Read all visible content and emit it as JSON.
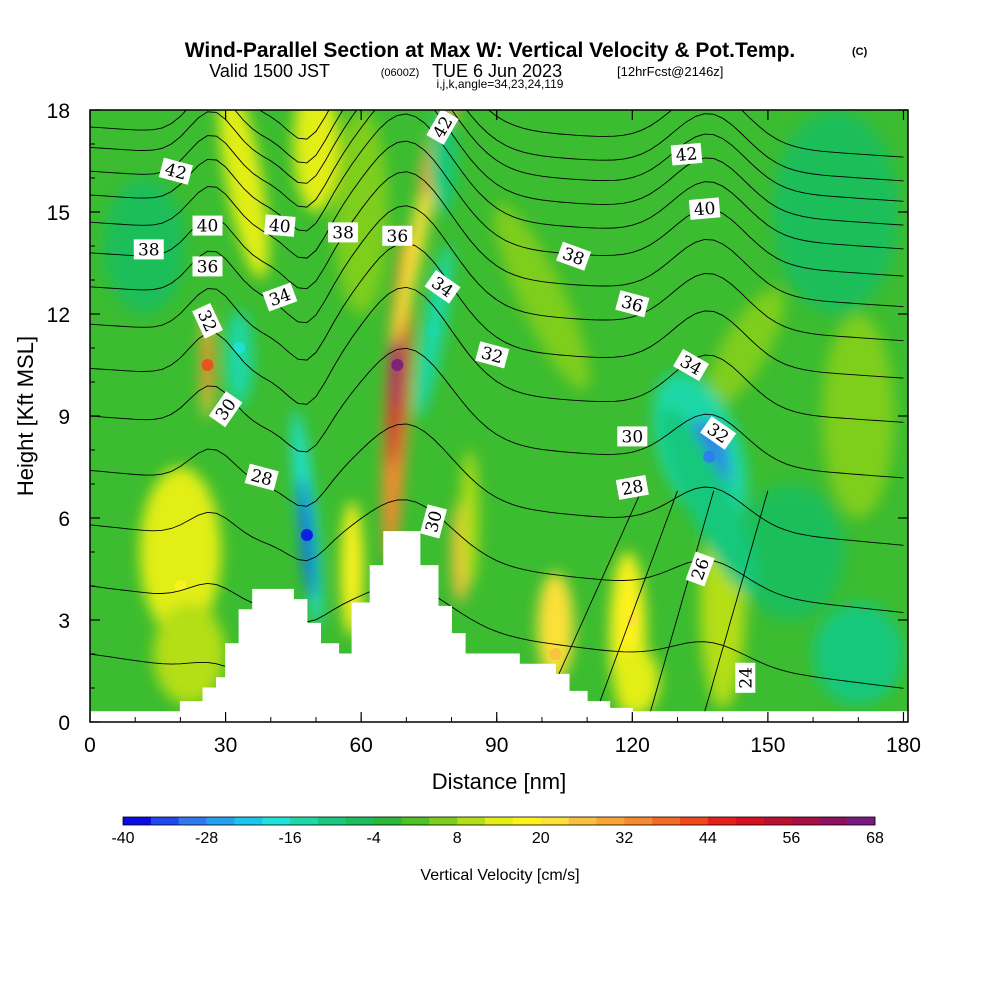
{
  "header": {
    "title": "Wind-Parallel Section at Max W: Vertical Velocity & Pot.Temp.",
    "copyright": "(C)",
    "valid_prefix": "Valid 1500 JST",
    "valid_utc": "(0600Z)",
    "valid_date": "TUE 6 Jun 2023",
    "forecast_info": "[12hrFcst@2146z]",
    "section_params": "i,j,k,angle=34,23,24,119"
  },
  "chart_data": {
    "type": "heatmap",
    "title": "Wind-Parallel Section at Max W: Vertical Velocity & Pot.Temp.",
    "xlabel": "Distance [nm]",
    "ylabel": "Height [Kft MSL]",
    "xlim": [
      0,
      181
    ],
    "ylim": [
      0,
      18
    ],
    "x_ticks": [
      0,
      30,
      60,
      90,
      120,
      150,
      180
    ],
    "y_ticks": [
      0,
      3,
      6,
      9,
      12,
      15,
      18
    ],
    "colorbar": {
      "label": "Vertical Velocity [cm/s]",
      "tick_values": [
        -40,
        -28,
        -16,
        -4,
        8,
        20,
        32,
        44,
        56,
        68
      ],
      "levels": [
        -40,
        -36,
        -32,
        -28,
        -24,
        -20,
        -16,
        -12,
        -8,
        -4,
        0,
        4,
        8,
        12,
        16,
        20,
        24,
        28,
        32,
        36,
        40,
        44,
        48,
        52,
        56,
        60,
        64,
        68
      ],
      "colors": [
        "#0a0ae6",
        "#1f48f0",
        "#2f78f2",
        "#24a0f0",
        "#18c6ee",
        "#1ee2dc",
        "#1cd8a6",
        "#18c87c",
        "#1bbe5a",
        "#2ab83a",
        "#4ec222",
        "#7ece1a",
        "#b4de14",
        "#e2ee14",
        "#fdf21e",
        "#fde038",
        "#f8c03e",
        "#f8a436",
        "#f68a2e",
        "#f46a24",
        "#f0481c",
        "#e8201c",
        "#d6101e",
        "#bc0e30",
        "#a60e44",
        "#8e1060",
        "#781a80"
      ]
    },
    "vertical_velocity_field": [
      {
        "x": 26,
        "y": 10.5,
        "w": 40,
        "desc": "narrow updraft"
      },
      {
        "x": 33,
        "y": 11.0,
        "w": -18,
        "desc": "downdraft"
      },
      {
        "x": 48,
        "y": 5.5,
        "w": -40,
        "desc": "strong downdraft"
      },
      {
        "x": 68,
        "y": 10.5,
        "w": 64,
        "desc": "peak updraft (max W)"
      },
      {
        "x": 76,
        "y": 11.5,
        "w": -16,
        "desc": "downdraft"
      },
      {
        "x": 78,
        "y": 17.5,
        "w": 28,
        "desc": "upper updraft"
      },
      {
        "x": 137,
        "y": 7.8,
        "w": -32,
        "desc": "downdraft core"
      },
      {
        "x": 120,
        "y": 3.0,
        "w": 20,
        "desc": "low-level updraft"
      },
      {
        "x": 20,
        "y": 4.0,
        "w": 16,
        "desc": "low-level updraft"
      },
      {
        "x": 103,
        "y": 2.0,
        "w": 24,
        "desc": "low-level updraft"
      }
    ],
    "potential_temperature_contours": {
      "labels_shown": [
        24,
        26,
        28,
        30,
        32,
        34,
        36,
        38,
        40,
        42
      ]
    },
    "terrain_profile": {
      "x": [
        0,
        17,
        20,
        25,
        28,
        30,
        33,
        36,
        40,
        45,
        48,
        51,
        55,
        58,
        62,
        65,
        70,
        73,
        77,
        80,
        83,
        86,
        90,
        95,
        100,
        103,
        106,
        110,
        115,
        120
      ],
      "height": [
        0.3,
        0.3,
        0.6,
        1.0,
        1.3,
        2.3,
        3.3,
        3.9,
        3.9,
        3.6,
        2.9,
        2.3,
        2.0,
        3.5,
        4.6,
        5.6,
        5.6,
        4.6,
        3.4,
        2.6,
        2.0,
        2.0,
        2.0,
        1.7,
        1.7,
        1.4,
        0.9,
        0.6,
        0.4,
        0.3
      ]
    }
  }
}
